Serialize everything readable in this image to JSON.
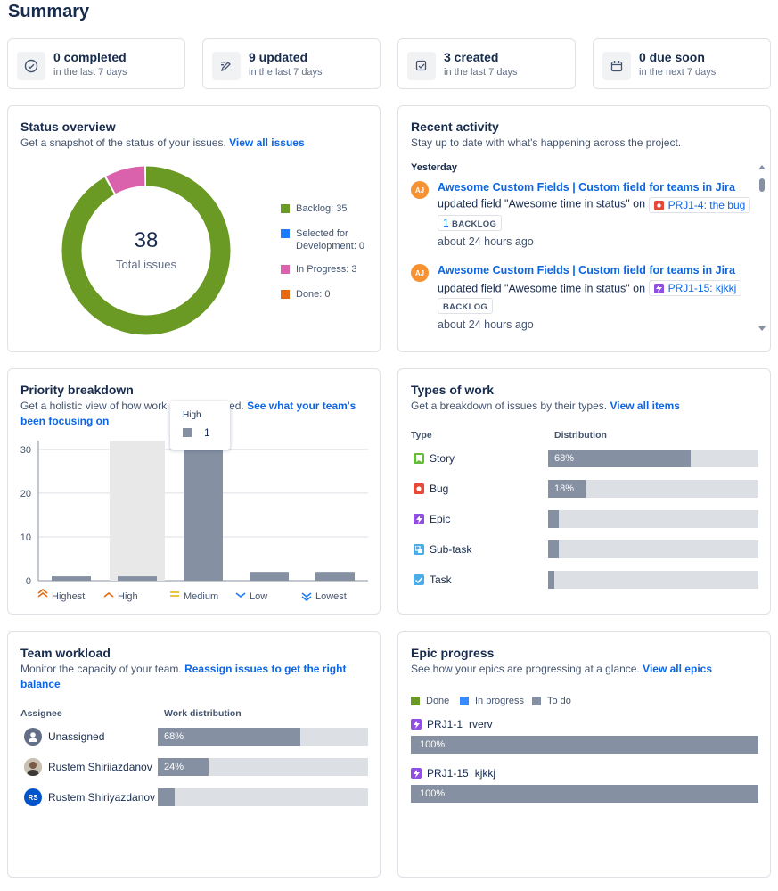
{
  "page": {
    "title": "Summary"
  },
  "stats": [
    {
      "value": "0 completed",
      "caption": "in the last 7 days",
      "icon": "check-circle-icon"
    },
    {
      "value": "9 updated",
      "caption": "in the last 7 days",
      "icon": "edit-icon"
    },
    {
      "value": "3 created",
      "caption": "in the last 7 days",
      "icon": "create-icon"
    },
    {
      "value": "0 due soon",
      "caption": "in the next 7 days",
      "icon": "calendar-icon"
    }
  ],
  "status_overview": {
    "title": "Status overview",
    "subtitle": "Get a snapshot of the status of your issues.",
    "link": "View all issues",
    "total": "38",
    "total_label": "Total issues",
    "legend": [
      {
        "label": "Backlog: 35",
        "color": "#6a9a23",
        "value": 35
      },
      {
        "label": "Selected for",
        "label2": "Development: 0",
        "color": "#1d7afc",
        "value": 0
      },
      {
        "label": "In Progress: 3",
        "color": "#da62ac",
        "value": 3
      },
      {
        "label": "Done: 0",
        "color": "#e56910",
        "value": 0
      }
    ]
  },
  "recent_activity": {
    "title": "Recent activity",
    "subtitle": "Stay up to date with what's happening across the project.",
    "day": "Yesterday",
    "items": [
      {
        "avatar": "AJ",
        "title": "Awesome Custom Fields | Custom field for teams in Jira",
        "action": "updated field \"Awesome time in status\" on",
        "issue": "PRJ1-4: the bug",
        "issue_type": "bug",
        "count": "1",
        "status": "BACKLOG",
        "time": "about 24 hours ago"
      },
      {
        "avatar": "AJ",
        "title": "Awesome Custom Fields | Custom field for teams in Jira",
        "action": "updated field \"Awesome time in status\" on",
        "issue": "PRJ1-15: kjkkj",
        "issue_type": "epic",
        "status": "BACKLOG",
        "time": "about 24 hours ago"
      }
    ]
  },
  "priority_breakdown": {
    "title": "Priority breakdown",
    "subtitle_a": "Get a holistic view of how work",
    "subtitle_b": "ritized.",
    "link_a": "See what your team's",
    "link_b": "been focusing on",
    "tooltip": {
      "label": "High",
      "value": "1"
    }
  },
  "types_of_work": {
    "title": "Types of work",
    "subtitle": "Get a breakdown of issues by their types.",
    "link": "View all items",
    "col_type": "Type",
    "col_dist": "Distribution",
    "rows": [
      {
        "name": "Story",
        "pct": 68,
        "label": "68%",
        "icon_color": "#63ba3c"
      },
      {
        "name": "Bug",
        "pct": 18,
        "label": "18%",
        "icon_color": "#e5493a"
      },
      {
        "name": "Epic",
        "pct": 5,
        "label": "",
        "icon_color": "#904ee2"
      },
      {
        "name": "Sub-task",
        "pct": 5,
        "label": "",
        "icon_color": "#4bade8"
      },
      {
        "name": "Task",
        "pct": 3,
        "label": "",
        "icon_color": "#4bade8"
      }
    ]
  },
  "team_workload": {
    "title": "Team workload",
    "subtitle": "Monitor the capacity of your team.",
    "link_a": "Reassign issues to get the right",
    "link_b": "balance",
    "col_assignee": "Assignee",
    "col_dist": "Work distribution",
    "rows": [
      {
        "name": "Unassigned",
        "pct": 68,
        "label": "68%",
        "avatar": "unassigned"
      },
      {
        "name": "Rustem Shiriiazdanov",
        "pct": 24,
        "label": "24%",
        "avatar": "photo"
      },
      {
        "name": "Rustem Shiriyazdanov",
        "pct": 8,
        "label": "",
        "avatar": "RS"
      }
    ]
  },
  "epic_progress": {
    "title": "Epic progress",
    "subtitle": "See how your epics are progressing at a glance.",
    "link": "View all epics",
    "legend": [
      {
        "label": "Done",
        "color": "#6a9a23"
      },
      {
        "label": "In progress",
        "color": "#388bff"
      },
      {
        "label": "To do",
        "color": "#8590a2"
      }
    ],
    "epics": [
      {
        "key": "PRJ1-1",
        "name": "rverv",
        "pct": "100%"
      },
      {
        "key": "PRJ1-15",
        "name": "kjkkj",
        "pct": "100%"
      }
    ]
  },
  "chart_data": {
    "type": "bar",
    "title": "Priority breakdown",
    "categories": [
      "Highest",
      "High",
      "Medium",
      "Low",
      "Lowest"
    ],
    "values": [
      1,
      1,
      31,
      2,
      2
    ],
    "ylim": [
      0,
      32
    ],
    "yticks": [
      "0",
      "10",
      "20",
      "30"
    ],
    "ytick_values": [
      0,
      10,
      20,
      30
    ],
    "highlight": "High",
    "xlabel": "",
    "ylabel": ""
  }
}
